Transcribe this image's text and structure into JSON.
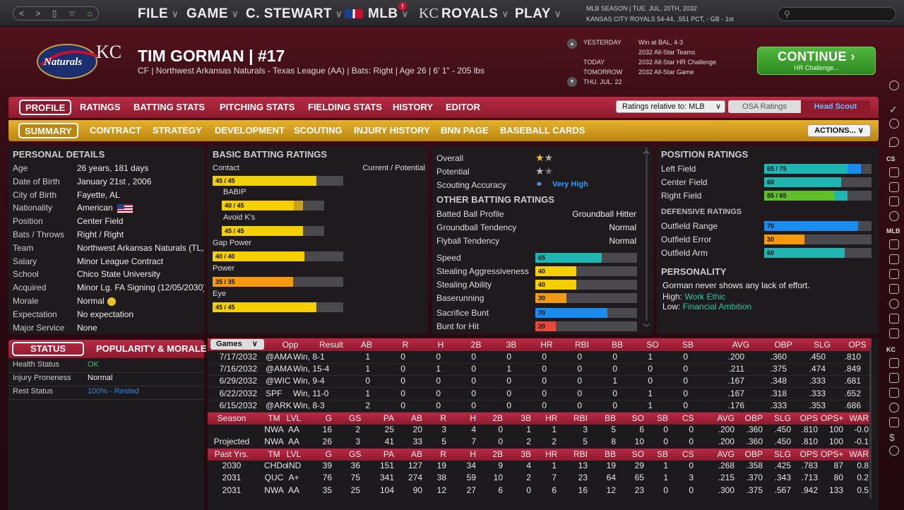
{
  "topbar": {
    "menus": [
      "FILE",
      "GAME",
      "C. STEWART",
      "MLB",
      "ROYALS",
      "PLAY"
    ],
    "mlb_badge": "!",
    "royals_logo": "KC",
    "season_line1": "MLB SEASON  |  TUE. JUL. 20TH, 2032",
    "season_line2": "KANSAS CITY ROYALS  54-44, .551 PCT, - GB - 1st"
  },
  "header": {
    "player_name": "TIM GORMAN   |   #17",
    "player_info": "CF | Northwest Arkansas Naturals - Texas League (AA)  |  Bats: Right  |  Age 26  |  6' 1\" - 205 lbs",
    "team_logo_text": "Naturals",
    "kc_logo": "KC"
  },
  "schedule": [
    {
      "day": "YESTERDAY",
      "event": "Win at BAL, 4-3"
    },
    {
      "day": "",
      "event": "2032 All-Star Teams"
    },
    {
      "day": "TODAY",
      "event": "2032 All-Star HR Challenge"
    },
    {
      "day": "TOMORROW",
      "event": "2032 All-Star Game"
    },
    {
      "day": "THU. JUL. 22",
      "event": ""
    }
  ],
  "continue": {
    "label": "CONTINUE",
    "sub": "HR Challenge..."
  },
  "tabs1": [
    "PROFILE",
    "RATINGS",
    "BATTING STATS",
    "PITCHING STATS",
    "FIELDING STATS",
    "HISTORY",
    "EDITOR"
  ],
  "tabs2": [
    "SUMMARY",
    "CONTRACT",
    "STRATEGY",
    "DEVELOPMENT",
    "SCOUTING",
    "INJURY HISTORY",
    "BNN PAGE",
    "BASEBALL CARDS"
  ],
  "ratings_select": "Ratings relative to: MLB",
  "osa": "OSA Ratings",
  "head_scout": "Head Scout",
  "actions": "ACTIONS...",
  "personal": {
    "title": "PERSONAL DETAILS",
    "rows": [
      {
        "k": "Age",
        "v": "26 years, 181 days"
      },
      {
        "k": "Date of Birth",
        "v": "January 21st , 2006"
      },
      {
        "k": "City of Birth",
        "v": "Fayette, AL"
      },
      {
        "k": "Nationality",
        "v": "American"
      },
      {
        "k": "Position",
        "v": "Center Field"
      },
      {
        "k": "Bats / Throws",
        "v": "Right / Right"
      },
      {
        "k": "Team",
        "v": "Northwest Arkansas Naturals (TL, K"
      },
      {
        "k": "Salary",
        "v": "Minor League Contract"
      },
      {
        "k": "School",
        "v": "Chico State University"
      },
      {
        "k": "Acquired",
        "v": "Minor Lg. FA Signing (12/05/2030)"
      },
      {
        "k": "Morale",
        "v": "Normal"
      },
      {
        "k": "Expectation",
        "v": "No expectation"
      },
      {
        "k": "Major Service",
        "v": "None"
      }
    ]
  },
  "batting": {
    "title": "BASIC BATTING RATINGS",
    "header_right": "Current / Potential",
    "ratings": [
      {
        "name": "Contact",
        "label": "45 / 45",
        "cur": 45,
        "pot": 45,
        "sub": false
      },
      {
        "name": "BABIP",
        "label": "40 / 45",
        "cur": 40,
        "pot": 45,
        "sub": true
      },
      {
        "name": "Avoid K's",
        "label": "45 / 45",
        "cur": 45,
        "pot": 45,
        "sub": true
      },
      {
        "name": "Gap Power",
        "label": "40 / 40",
        "cur": 40,
        "pot": 40,
        "sub": false
      },
      {
        "name": "Power",
        "label": "35 / 35",
        "cur": 35,
        "pot": 35,
        "sub": false
      },
      {
        "name": "Eye",
        "label": "45 / 45",
        "cur": 45,
        "pot": 45,
        "sub": false
      }
    ]
  },
  "summary": {
    "overall": "Overall",
    "potential": "Potential",
    "scouting": "Scouting Accuracy",
    "scouting_val": "Very High",
    "other_title": "OTHER BATTING RATINGS",
    "text_rows": [
      {
        "k": "Batted Ball Profile",
        "v": "Groundball Hitter"
      },
      {
        "k": "Groundball Tendency",
        "v": "Normal"
      },
      {
        "k": "Flyball Tendency",
        "v": "Normal"
      }
    ],
    "bar_rows": [
      {
        "k": "Speed",
        "v": 65,
        "color": "#1fb5b0"
      },
      {
        "k": "Stealing Aggressiveness",
        "v": 40,
        "color": "#f5d000"
      },
      {
        "k": "Stealing Ability",
        "v": 40,
        "color": "#f5d000"
      },
      {
        "k": "Baserunning",
        "v": 30,
        "color": "#f39a12"
      },
      {
        "k": "Sacrifice Bunt",
        "v": 70,
        "color": "#1a8cf0"
      },
      {
        "k": "Bunt for Hit",
        "v": 20,
        "color": "#e8493a"
      }
    ]
  },
  "position": {
    "title": "POSITION RATINGS",
    "rows": [
      {
        "k": "Left Field",
        "label": "65 / 75",
        "cur": 65,
        "pot": 75,
        "color": "#1fb5b0",
        "pcolor": "#1a8cf0"
      },
      {
        "k": "Center Field",
        "label": "60",
        "cur": 60,
        "pot": 60,
        "color": "#1fb5b0",
        "pcolor": "#1fb5b0"
      },
      {
        "k": "Right Field",
        "label": "55 / 65",
        "cur": 55,
        "pot": 65,
        "color": "#5fbf28",
        "pcolor": "#1fb5b0"
      }
    ],
    "def_title": "DEFENSIVE RATINGS",
    "def_rows": [
      {
        "k": "Outfield Range",
        "label": "70",
        "v": 70,
        "color": "#1a8cf0"
      },
      {
        "k": "Outfield Error",
        "label": "30",
        "v": 30,
        "color": "#f39a12"
      },
      {
        "k": "Outfield Arm",
        "label": "60",
        "v": 60,
        "color": "#1fb5b0"
      }
    ],
    "pers_title": "PERSONALITY",
    "pers_text": "Gorman never shows any lack of effort.",
    "high_label": "High:",
    "high_val": "Work Ethic",
    "low_label": "Low:",
    "low_val": "Financial Ambition"
  },
  "status": {
    "tab_status": "STATUS",
    "tab_pop": "POPULARITY & MORALE",
    "rows": [
      {
        "k": "Health Status",
        "v": "OK",
        "color": "#2ecc71"
      },
      {
        "k": "Injury Proneness",
        "v": "Normal",
        "color": "#eeeeee"
      },
      {
        "k": "Rest Status",
        "v": "100% - Rested",
        "color": "#1a8cf0"
      }
    ]
  },
  "games": {
    "dropdown": "Games",
    "header": [
      "Opp",
      "Result",
      "AB",
      "R",
      "H",
      "2B",
      "3B",
      "HR",
      "RBI",
      "BB",
      "SO",
      "SB",
      "AVG",
      "OBP",
      "SLG",
      "OPS"
    ],
    "rows": [
      [
        "7/17/2032",
        "@AMA",
        "Win, 8-1",
        "1",
        "0",
        "0",
        "0",
        "0",
        "0",
        "0",
        "0",
        "1",
        "0",
        ".200",
        ".360",
        ".450",
        ".810"
      ],
      [
        "7/16/2032",
        "@AMA",
        "Win, 15-4",
        "1",
        "0",
        "1",
        "0",
        "1",
        "0",
        "0",
        "0",
        "0",
        "0",
        ".211",
        ".375",
        ".474",
        ".849"
      ],
      [
        "6/29/2032",
        "@WIC",
        "Win, 9-4",
        "0",
        "0",
        "0",
        "0",
        "0",
        "0",
        "0",
        "1",
        "0",
        "0",
        ".167",
        ".348",
        ".333",
        ".681"
      ],
      [
        "6/22/2032",
        "SPF",
        "Win, 11-0",
        "1",
        "0",
        "0",
        "0",
        "0",
        "0",
        "0",
        "0",
        "1",
        "0",
        ".167",
        ".318",
        ".333",
        ".652"
      ],
      [
        "6/15/2032",
        "@ARK",
        "Win, 8-3",
        "2",
        "0",
        "0",
        "0",
        "0",
        "0",
        "0",
        "0",
        "1",
        "0",
        ".176",
        ".333",
        ".353",
        ".686"
      ]
    ],
    "season_header": [
      "Season",
      "TM",
      "LVL",
      "G",
      "GS",
      "PA",
      "AB",
      "R",
      "H",
      "2B",
      "3B",
      "HR",
      "RBI",
      "BB",
      "SO",
      "SB",
      "CS",
      "AVG",
      "OBP",
      "SLG",
      "OPS",
      "OPS+",
      "WAR"
    ],
    "season_rows": [
      [
        "",
        "NWA",
        "AA",
        "16",
        "2",
        "25",
        "20",
        "3",
        "4",
        "0",
        "1",
        "1",
        "3",
        "5",
        "6",
        "0",
        "0",
        ".200",
        ".360",
        ".450",
        ".810",
        "100",
        "-0.0"
      ],
      [
        "Projected",
        "NWA",
        "AA",
        "26",
        "3",
        "41",
        "33",
        "5",
        "7",
        "0",
        "2",
        "2",
        "5",
        "8",
        "10",
        "0",
        "0",
        ".200",
        ".360",
        ".450",
        ".810",
        "100",
        "-0.1"
      ]
    ],
    "past_header": [
      "Past Yrs.",
      "TM",
      "LVL",
      "G",
      "GS",
      "PA",
      "AB",
      "R",
      "H",
      "2B",
      "3B",
      "HR",
      "RBI",
      "BB",
      "SO",
      "SB",
      "CS",
      "AVG",
      "OBP",
      "SLG",
      "OPS",
      "OPS+",
      "WAR"
    ],
    "past_rows": [
      [
        "2030",
        "CHDo",
        "IND",
        "39",
        "36",
        "151",
        "127",
        "19",
        "34",
        "9",
        "4",
        "1",
        "13",
        "19",
        "29",
        "1",
        "0",
        ".268",
        ".358",
        ".425",
        ".783",
        "87",
        "0.8"
      ],
      [
        "2031",
        "QUC",
        "A+",
        "76",
        "75",
        "341",
        "274",
        "38",
        "59",
        "10",
        "2",
        "7",
        "23",
        "64",
        "65",
        "1",
        "3",
        ".215",
        ".370",
        ".343",
        ".713",
        "80",
        "0.2"
      ],
      [
        "2031",
        "NWA",
        "AA",
        "35",
        "25",
        "104",
        "90",
        "12",
        "27",
        "6",
        "0",
        "6",
        "16",
        "12",
        "23",
        "0",
        "0",
        ".300",
        ".375",
        ".567",
        ".942",
        "133",
        "0.5"
      ]
    ]
  },
  "sidebar": {
    "labels": [
      "CS",
      "MLB",
      "KC"
    ]
  }
}
